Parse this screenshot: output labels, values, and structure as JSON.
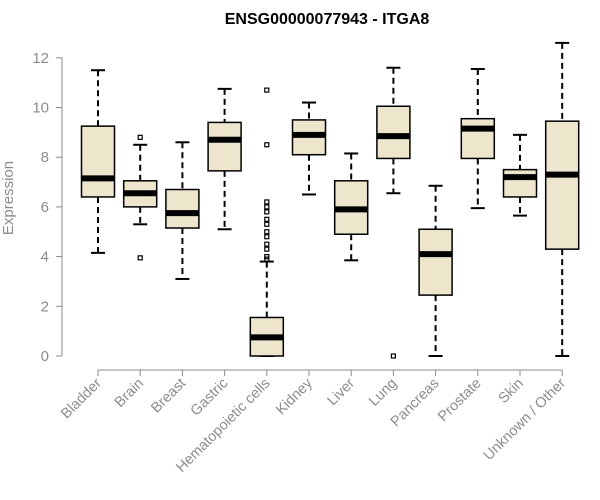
{
  "chart_data": {
    "type": "boxplot",
    "title": "ENSG00000077943 - ITGA8",
    "xlabel": "",
    "ylabel": "Expression",
    "ylim": [
      0,
      12.6
    ],
    "yticks": [
      0,
      2,
      4,
      6,
      8,
      10,
      12
    ],
    "grid": false,
    "colors": {
      "box_fill": "#ede6cc",
      "median": "#000000",
      "axis": "#8c8c8c",
      "text": "#8c8c8c"
    },
    "categories": [
      "Bladder",
      "Brain",
      "Breast",
      "Gastric",
      "Hematopoietic cells",
      "Kidney",
      "Liver",
      "Lung",
      "Pancreas",
      "Prostate",
      "Skin",
      "Unknown / Other"
    ],
    "boxes": [
      {
        "name": "Bladder",
        "min": 4.15,
        "q1": 6.4,
        "median": 7.15,
        "q3": 9.25,
        "max": 11.5,
        "outliers": []
      },
      {
        "name": "Brain",
        "min": 5.3,
        "q1": 6.0,
        "median": 6.55,
        "q3": 7.05,
        "max": 8.5,
        "outliers": [
          3.95,
          8.8
        ]
      },
      {
        "name": "Breast",
        "min": 3.1,
        "q1": 5.15,
        "median": 5.75,
        "q3": 6.7,
        "max": 8.6,
        "outliers": []
      },
      {
        "name": "Gastric",
        "min": 5.1,
        "q1": 7.45,
        "median": 8.7,
        "q3": 9.4,
        "max": 10.75,
        "outliers": []
      },
      {
        "name": "Hematopoietic cells",
        "min": 0.0,
        "q1": 0.0,
        "median": 0.75,
        "q3": 1.55,
        "max": 3.8,
        "outliers": [
          3.9,
          4.0,
          4.3,
          4.5,
          4.8,
          5.0,
          5.3,
          5.5,
          5.8,
          6.0,
          6.2,
          8.5,
          10.7
        ]
      },
      {
        "name": "Kidney",
        "min": 6.5,
        "q1": 8.1,
        "median": 8.9,
        "q3": 9.5,
        "max": 10.2,
        "outliers": []
      },
      {
        "name": "Liver",
        "min": 3.85,
        "q1": 4.9,
        "median": 5.9,
        "q3": 7.05,
        "max": 8.15,
        "outliers": []
      },
      {
        "name": "Lung",
        "min": 6.55,
        "q1": 7.95,
        "median": 8.85,
        "q3": 10.05,
        "max": 11.6,
        "outliers": [
          0.0
        ]
      },
      {
        "name": "Pancreas",
        "min": 0.0,
        "q1": 2.45,
        "median": 4.1,
        "q3": 5.1,
        "max": 6.85,
        "outliers": []
      },
      {
        "name": "Prostate",
        "min": 5.95,
        "q1": 7.95,
        "median": 9.15,
        "q3": 9.55,
        "max": 11.55,
        "outliers": []
      },
      {
        "name": "Skin",
        "min": 5.65,
        "q1": 6.4,
        "median": 7.2,
        "q3": 7.5,
        "max": 8.9,
        "outliers": []
      },
      {
        "name": "Unknown / Other",
        "min": 0.0,
        "q1": 4.3,
        "median": 7.3,
        "q3": 9.45,
        "max": 12.6,
        "outliers": []
      }
    ]
  }
}
